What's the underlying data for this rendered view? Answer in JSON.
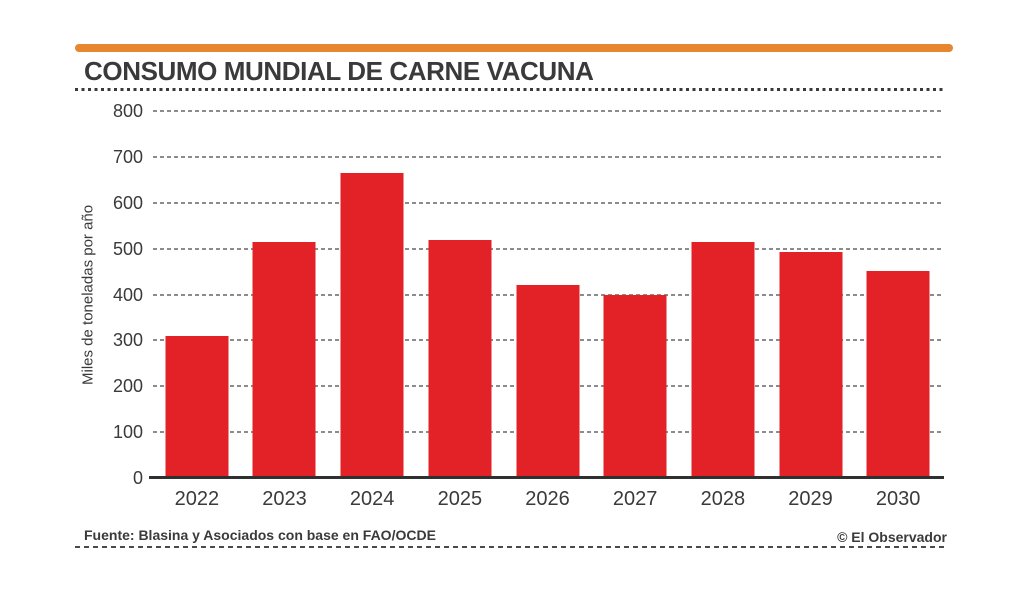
{
  "colors": {
    "accent_orange": "#E6862D",
    "bar_red": "#E32227",
    "text_dark": "#3A3A3A",
    "gridline_gray": "#8C8C8C",
    "axis_dark": "#303030"
  },
  "header": {
    "title": "CONSUMO MUNDIAL DE CARNE VACUNA"
  },
  "chart_data": {
    "type": "bar",
    "title": "CONSUMO MUNDIAL DE CARNE VACUNA",
    "categories": [
      "2022",
      "2023",
      "2024",
      "2025",
      "2026",
      "2027",
      "2028",
      "2029",
      "2030"
    ],
    "values": [
      310,
      515,
      665,
      518,
      420,
      400,
      515,
      492,
      452
    ],
    "xlabel": "",
    "ylabel": "Miles de toneladas por año",
    "ylim": [
      0,
      800
    ],
    "yticks": [
      0,
      100,
      200,
      300,
      400,
      500,
      600,
      700,
      800
    ],
    "grid": "horizontal-dashed",
    "legend": "none",
    "bar_color": "#E32227"
  },
  "footer": {
    "source": "Fuente: Blasina y Asociados con base en FAO/OCDE",
    "credit": "© El Observador"
  }
}
